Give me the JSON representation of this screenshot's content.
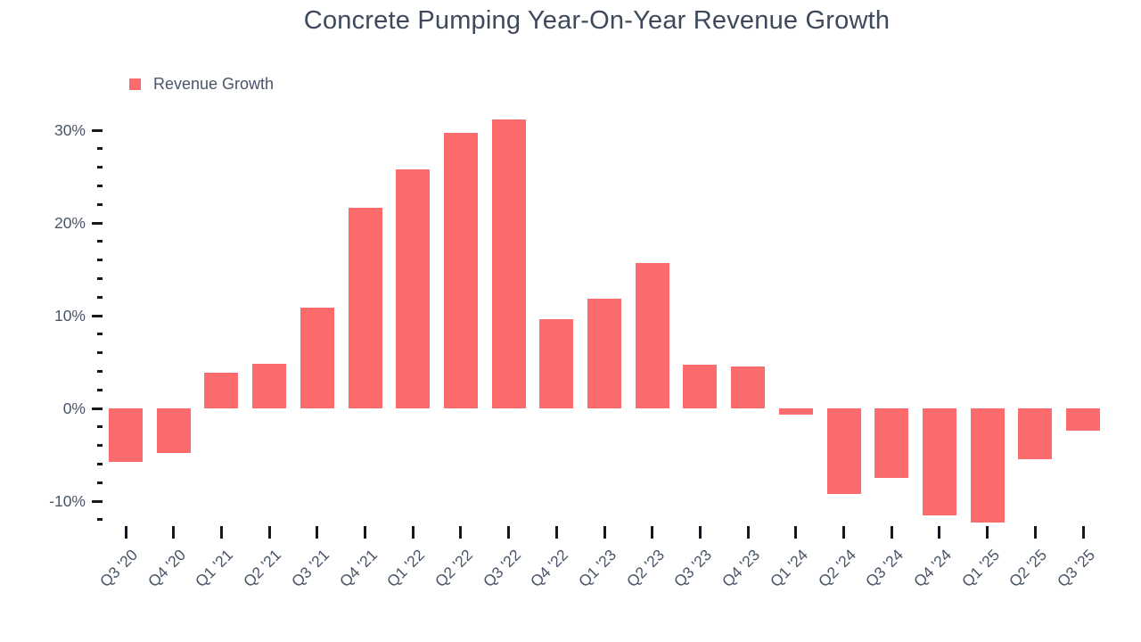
{
  "title": "Concrete Pumping Year-On-Year Revenue Growth",
  "legend": {
    "label": "Revenue Growth",
    "swatch_color": "#FB6B6B"
  },
  "colors": {
    "bar": "#FB6B6B",
    "title_text": "#3E4A5C",
    "axis_text": "#4A5568",
    "tick": "#14181F"
  },
  "chart_data": {
    "type": "bar",
    "title": "Concrete Pumping Year-On-Year Revenue Growth",
    "series_name": "Revenue Growth",
    "categories": [
      "Q3 '20",
      "Q4 '20",
      "Q1 '21",
      "Q2 '21",
      "Q3 '21",
      "Q4 '21",
      "Q1 '22",
      "Q2 '22",
      "Q3 '22",
      "Q4 '22",
      "Q1 '23",
      "Q2 '23",
      "Q3 '23",
      "Q4 '23",
      "Q1 '24",
      "Q2 '24",
      "Q3 '24",
      "Q4 '24",
      "Q1 '25",
      "Q2 '25",
      "Q3 '25"
    ],
    "values": [
      -5.8,
      -4.8,
      3.8,
      4.8,
      10.9,
      21.6,
      25.8,
      29.7,
      31.2,
      9.6,
      11.8,
      15.7,
      4.7,
      4.5,
      -0.7,
      -9.2,
      -7.5,
      -11.5,
      -12.3,
      -5.5,
      -2.4
    ],
    "unit": "%",
    "xlabel": "",
    "ylabel": "",
    "y_ticks_major": [
      30,
      20,
      10,
      0,
      -10
    ],
    "y_minor_step": 2,
    "y_axis_range": [
      -12,
      30
    ],
    "y_tick_format": "{v}%",
    "grid": false,
    "legend_position": "top-left",
    "bar_color": "#FB6B6B"
  }
}
